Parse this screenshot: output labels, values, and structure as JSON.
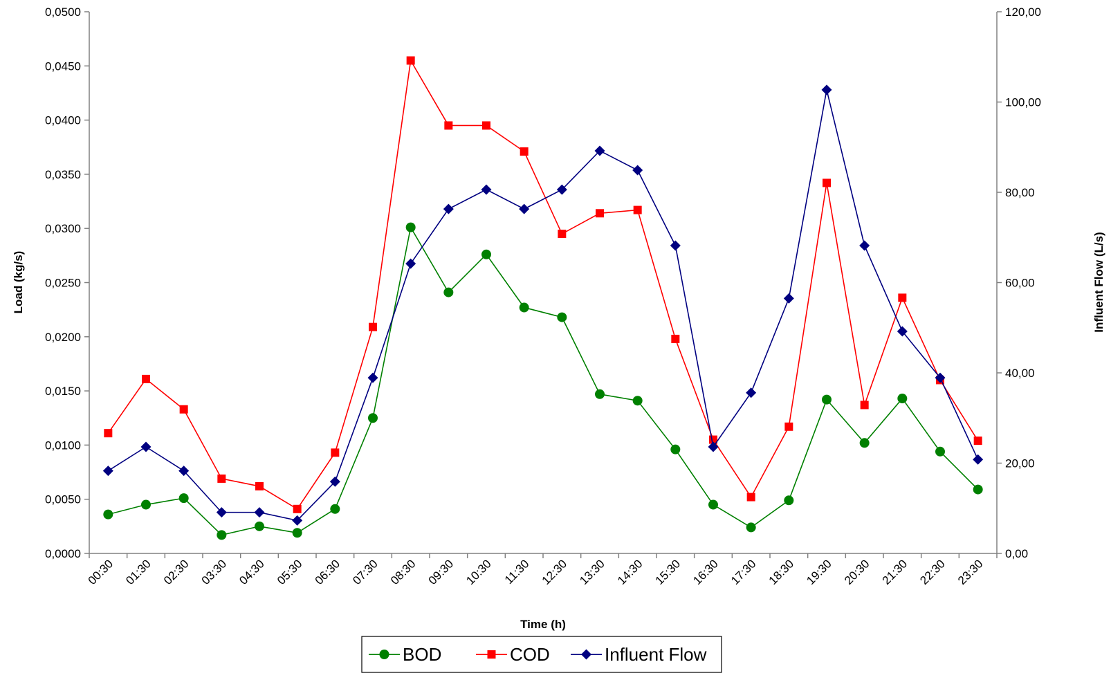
{
  "chart_data": {
    "type": "line",
    "xlabel": "Time (h)",
    "ylabel": "Load (kg/s)",
    "y2label": "Influent Flow (L/s)",
    "ylim": [
      0,
      0.05
    ],
    "y2lim": [
      0,
      120
    ],
    "y_ticks": [
      "0,0000",
      "0,0050",
      "0,0100",
      "0,0150",
      "0,0200",
      "0,0250",
      "0,0300",
      "0,0350",
      "0,0400",
      "0,0450",
      "0,0500"
    ],
    "y2_ticks": [
      "0,00",
      "20,00",
      "40,00",
      "60,00",
      "80,00",
      "100,00",
      "120,00"
    ],
    "categories": [
      "00:30",
      "01:30",
      "02:30",
      "03:30",
      "04:30",
      "05:30",
      "06:30",
      "07:30",
      "08:30",
      "09:30",
      "10:30",
      "11:30",
      "12:30",
      "13:30",
      "14:30",
      "15:30",
      "16:30",
      "17:30",
      "18:30",
      "19:30",
      "20:30",
      "21:30",
      "22:30",
      "23:30"
    ],
    "legend_position": "bottom",
    "grid": false,
    "series": [
      {
        "name": "BOD",
        "axis": "left",
        "color": "#008000",
        "marker": "circle",
        "values": [
          0.0036,
          0.0045,
          0.0051,
          0.0017,
          0.0025,
          0.0019,
          0.0041,
          0.0125,
          0.0301,
          0.0241,
          0.0276,
          0.0227,
          0.0218,
          0.0147,
          0.0141,
          0.0096,
          0.0045,
          0.0024,
          0.0049,
          0.0142,
          0.0102,
          0.0143,
          0.0094,
          0.0059
        ]
      },
      {
        "name": "COD",
        "axis": "left",
        "color": "#ff0000",
        "marker": "square",
        "values": [
          0.0111,
          0.0161,
          0.0133,
          0.0069,
          0.0062,
          0.0041,
          0.0093,
          0.0209,
          0.0455,
          0.0395,
          0.0395,
          0.0371,
          0.0295,
          0.0314,
          0.0317,
          0.0198,
          0.0105,
          0.0052,
          0.0117,
          0.0342,
          0.0137,
          0.0236,
          0.016,
          0.0104
        ]
      },
      {
        "name": "Influent Flow",
        "axis": "right",
        "color": "#000080",
        "marker": "diamond",
        "values": [
          18.3,
          23.6,
          18.3,
          9.1,
          9.1,
          7.3,
          15.9,
          38.9,
          64.2,
          76.3,
          80.6,
          76.3,
          80.6,
          89.2,
          84.9,
          68.2,
          23.6,
          35.6,
          56.5,
          102.7,
          68.2,
          49.2,
          38.9,
          20.8
        ]
      }
    ]
  }
}
